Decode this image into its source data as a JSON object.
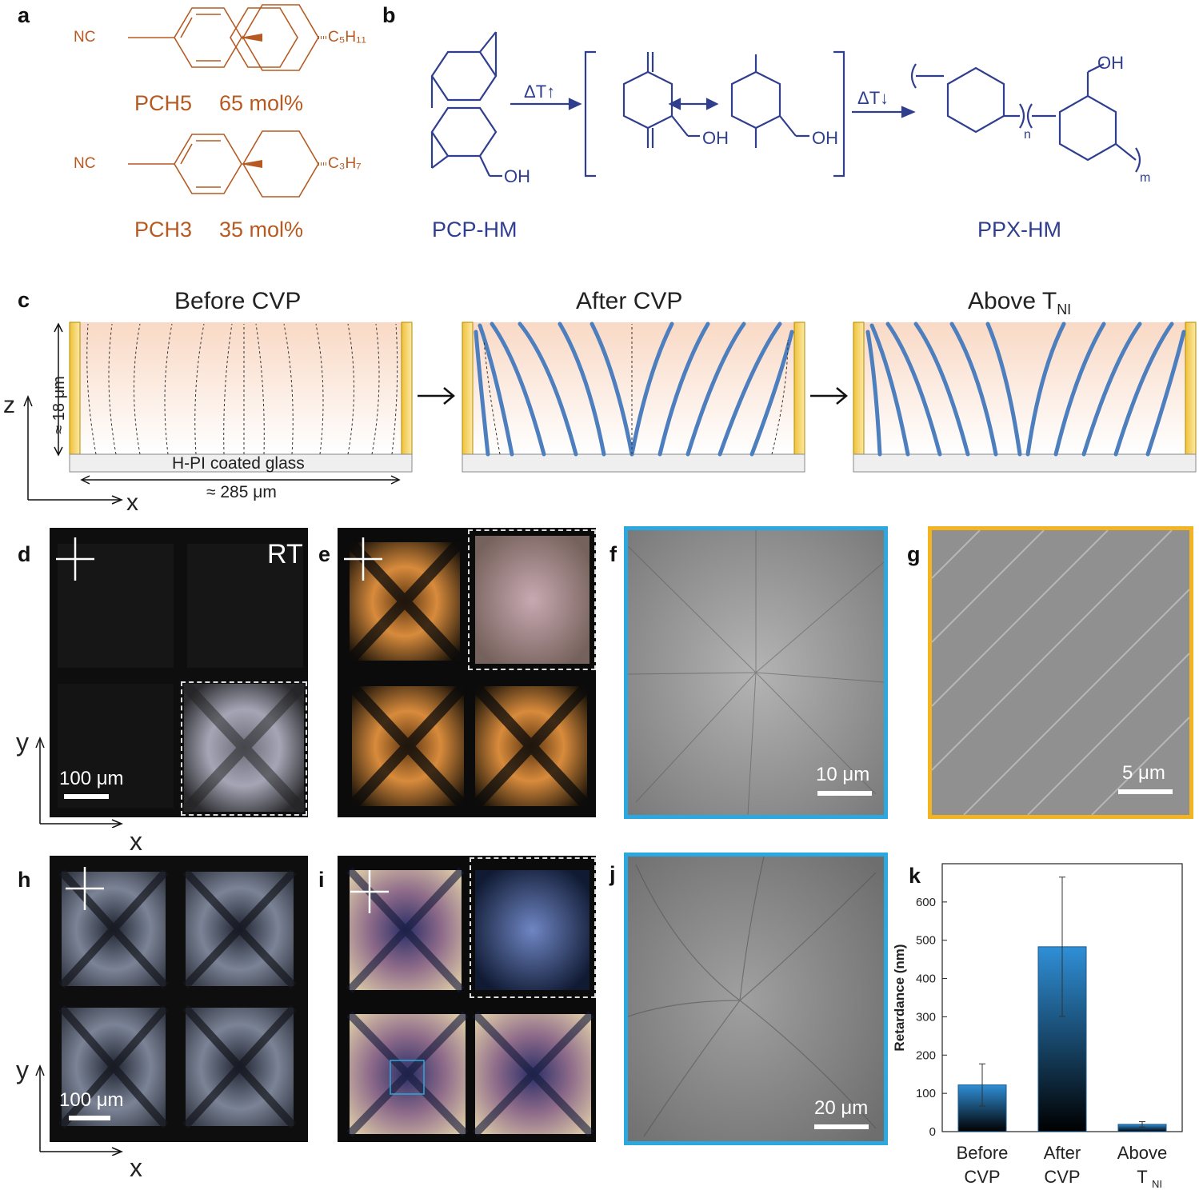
{
  "panels": {
    "a": {
      "label": "a",
      "compound1": {
        "cn": "NC",
        "tail": "C₅H₁₁",
        "name": "PCH5",
        "amount": "65 mol%"
      },
      "compound2": {
        "cn": "NC",
        "tail": "C₃H₇",
        "name": "PCH3",
        "amount": "35 mol%"
      }
    },
    "b": {
      "label": "b",
      "arrow1": "ΔT↑",
      "arrow2": "ΔT↓",
      "oh": "OH",
      "n": "n",
      "m": "m",
      "monomer": "PCP-HM",
      "polymer": "PPX-HM"
    },
    "c": {
      "label": "c",
      "titles": [
        "Before CVP",
        "After CVP",
        "Above T"
      ],
      "tni_sub": "NI",
      "height": "≈ 18 μm",
      "width": "≈ 285 μm",
      "substrate": "H-PI coated glass",
      "z": "z",
      "x": "x"
    },
    "d": {
      "label": "d",
      "rt": "RT",
      "scale": "100 μm",
      "x": "x",
      "y": "y"
    },
    "e": {
      "label": "e"
    },
    "f": {
      "label": "f",
      "scale": "10 μm",
      "border": "#2aa8df"
    },
    "g": {
      "label": "g",
      "scale": "5 μm",
      "border": "#f2b521"
    },
    "h": {
      "label": "h",
      "scale": "100 μm",
      "x": "x",
      "y": "y"
    },
    "i": {
      "label": "i"
    },
    "j": {
      "label": "j",
      "scale": "20 μm",
      "border": "#2aa8df"
    },
    "k": {
      "label": "k"
    }
  },
  "chart_data": {
    "type": "bar",
    "categories": [
      "Before CVP",
      "After CVP",
      "Above T_NI"
    ],
    "cat_line1": [
      "Before",
      "After",
      "Above"
    ],
    "cat_line2": [
      "CVP",
      "CVP",
      "T"
    ],
    "values": [
      122,
      483,
      19
    ],
    "errors": [
      55,
      182,
      7
    ],
    "ylabel": "Retardance (nm)",
    "ylim": [
      0,
      700
    ],
    "yticks": [
      0,
      100,
      200,
      300,
      400,
      500,
      600
    ],
    "ytick_labels": [
      "0",
      "100",
      "200",
      "300",
      "400",
      "500",
      "600"
    ],
    "bar_color_top": "#2f8fd6",
    "bar_color_bottom": "#000000"
  }
}
